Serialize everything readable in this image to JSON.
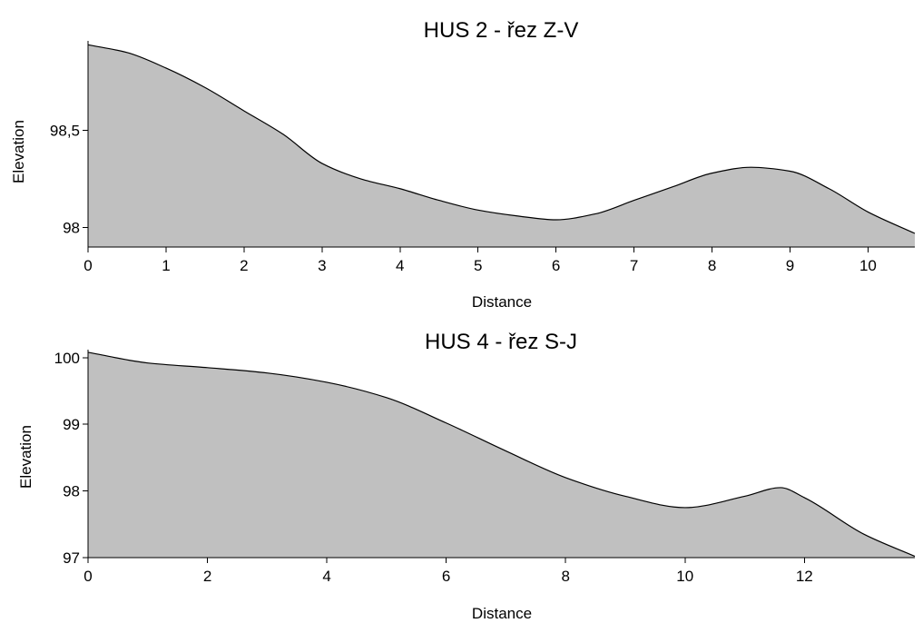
{
  "chart_data": [
    {
      "type": "area",
      "title": "HUS 2 - řez Z-V",
      "xlabel": "Distance",
      "ylabel": "Elevation",
      "xlim": [
        0,
        10.6
      ],
      "ylim": [
        97.9,
        98.96
      ],
      "x_ticks": [
        0,
        1,
        2,
        3,
        4,
        5,
        6,
        7,
        8,
        9,
        10
      ],
      "x_tick_labels": [
        "0",
        "1",
        "2",
        "3",
        "4",
        "5",
        "6",
        "7",
        "8",
        "9",
        "10"
      ],
      "y_ticks": [
        98,
        98.5
      ],
      "y_tick_labels": [
        "98",
        "98,5"
      ],
      "fill_color": "#c0c0c0",
      "line_color": "#000000",
      "grid": false,
      "series": [
        {
          "x": [
            0,
            0.5,
            1,
            1.5,
            2,
            2.5,
            3,
            3.5,
            4,
            4.5,
            5,
            5.5,
            6,
            6.5,
            7,
            7.5,
            8,
            8.5,
            9,
            9.5,
            10,
            10.6
          ],
          "y": [
            98.94,
            98.9,
            98.82,
            98.72,
            98.6,
            98.48,
            98.33,
            98.25,
            98.2,
            98.14,
            98.09,
            98.06,
            98.04,
            98.07,
            98.14,
            98.21,
            98.28,
            98.31,
            98.29,
            98.2,
            98.08,
            97.97
          ]
        }
      ]
    },
    {
      "type": "area",
      "title": "HUS 4 - řez S-J",
      "xlabel": "Distance",
      "ylabel": "Elevation",
      "xlim": [
        0,
        13.85
      ],
      "ylim": [
        97,
        100.12
      ],
      "x_ticks": [
        0,
        2,
        4,
        6,
        8,
        10,
        12
      ],
      "x_tick_labels": [
        "0",
        "2",
        "4",
        "6",
        "8",
        "10",
        "12"
      ],
      "y_ticks": [
        97,
        98,
        99,
        100
      ],
      "y_tick_labels": [
        "97",
        "98",
        "99",
        "100"
      ],
      "fill_color": "#c0c0c0",
      "line_color": "#000000",
      "grid": false,
      "series": [
        {
          "x": [
            0,
            1,
            2,
            3,
            4,
            5,
            6,
            7,
            8,
            9,
            10,
            11,
            11.6,
            12,
            13,
            13.85
          ],
          "y": [
            100.08,
            99.92,
            99.85,
            99.77,
            99.63,
            99.4,
            99.02,
            98.6,
            98.2,
            97.92,
            97.75,
            97.92,
            98.05,
            97.9,
            97.35,
            97.02
          ]
        }
      ]
    }
  ]
}
